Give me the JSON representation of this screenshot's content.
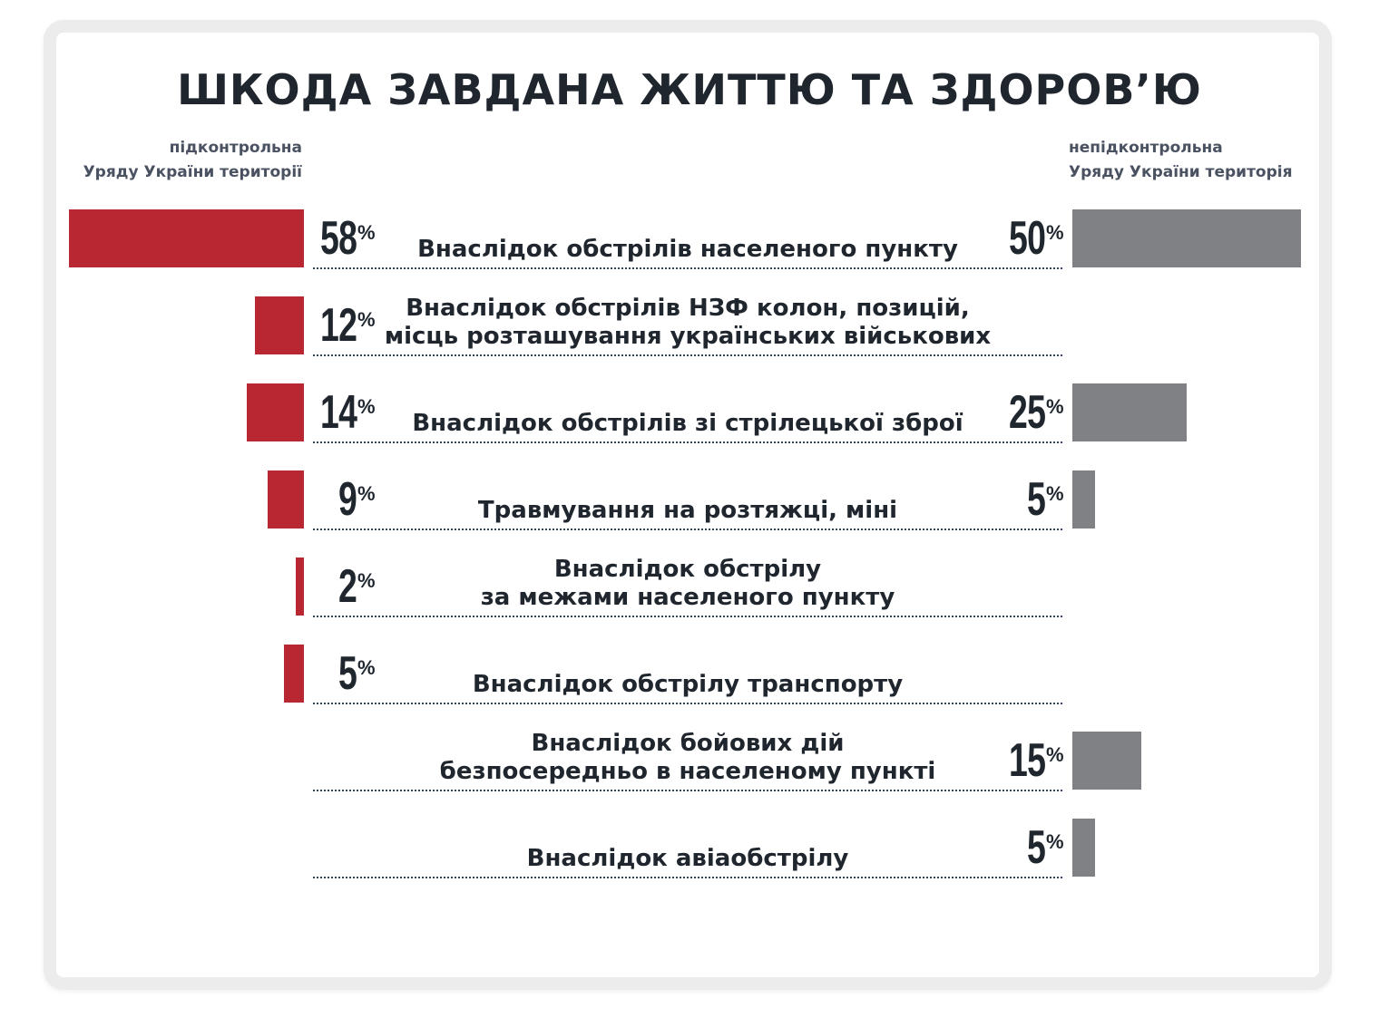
{
  "chart_data": {
    "type": "bar",
    "title": "ШКОДА ЗАВДАНА ЖИТТЮ ТА ЗДОРОВ’Ю",
    "unit": "%",
    "series": [
      {
        "name": "підконтрольна Уряду України територія",
        "color": "#b92732",
        "values": [
          58,
          12,
          14,
          9,
          2,
          5,
          null,
          null
        ]
      },
      {
        "name": "непідконтрольна Уряду України територія",
        "color": "#808184",
        "values": [
          50,
          null,
          25,
          5,
          null,
          null,
          15,
          5
        ]
      }
    ],
    "categories": [
      [
        "Внаслідок обстрілів населеного пункту"
      ],
      [
        "Внаслідок обстрілів НЗФ колон, позицій,",
        "місць розташування українських військових"
      ],
      [
        "Внаслідок обстрілів зі стрілецької зброї"
      ],
      [
        "Травмування на розтяжці, міні"
      ],
      [
        "Внаслідок обстрілу",
        "за межами населеного пункту"
      ],
      [
        "Внаслідок обстрілу транспорту"
      ],
      [
        "Внаслідок бойових дій",
        "безпосередньо в населеному пункті"
      ],
      [
        "Внаслідок авіаобстрілу"
      ]
    ]
  },
  "legend": {
    "left": [
      "підконтрольна",
      "Уряду України території"
    ],
    "right": [
      "непідконтрольна",
      "Уряду України територія"
    ]
  }
}
